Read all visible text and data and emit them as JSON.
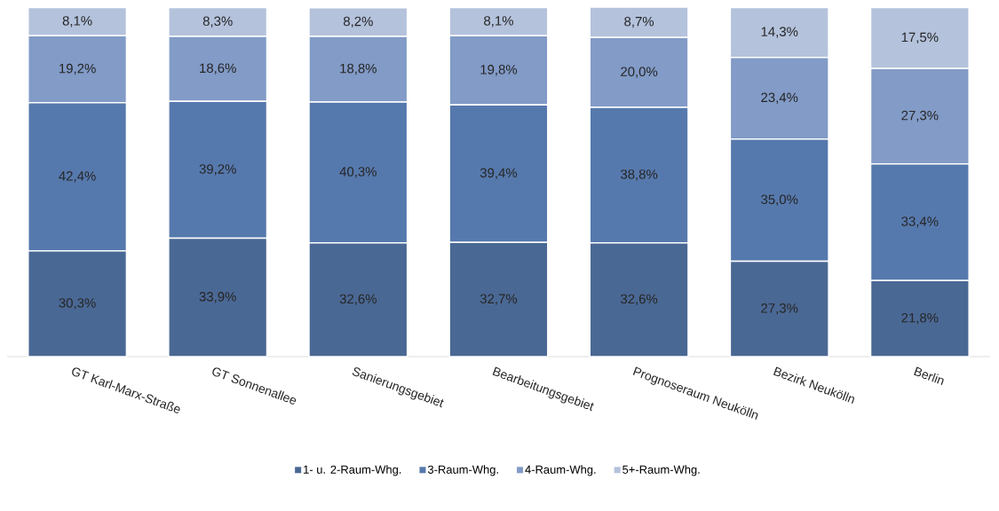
{
  "chart_data": {
    "type": "bar",
    "stacked": true,
    "categories": [
      "GT Karl-Marx-Straße",
      "GT Sonnenallee",
      "Sanierungsgebiet",
      "Bearbeitungsgebiet",
      "Prognoseraum Neukölln",
      "Bezirk Neukölln",
      "Berlin"
    ],
    "tick_labels": "x",
    "legend": "bottom",
    "series": [
      {
        "name": "1- u. 2-Raum-Whg.",
        "color": "#4a6894",
        "values": [
          30.3,
          33.9,
          32.6,
          32.7,
          32.6,
          27.3,
          21.8
        ],
        "value_labels": [
          "30,3%",
          "33,9%",
          "32,6%",
          "32,7%",
          "32,6%",
          "27,3%",
          "21,8%"
        ]
      },
      {
        "name": "3-Raum-Whg.",
        "color": "#5679ad",
        "values": [
          42.4,
          39.2,
          40.3,
          39.4,
          38.8,
          35.0,
          33.4
        ],
        "value_labels": [
          "42,4%",
          "39,2%",
          "40,3%",
          "39,4%",
          "38,8%",
          "35,0%",
          "33,4%"
        ]
      },
      {
        "name": "4-Raum-Whg.",
        "color": "#829bc7",
        "values": [
          19.2,
          18.6,
          18.8,
          19.8,
          20.0,
          23.4,
          27.3
        ],
        "value_labels": [
          "19,2%",
          "18,6%",
          "18,8%",
          "19,8%",
          "20,0%",
          "23,4%",
          "27,3%"
        ]
      },
      {
        "name": "5+-Raum-Whg.",
        "color": "#b4c2dc",
        "values": [
          8.1,
          8.3,
          8.2,
          8.1,
          8.7,
          14.3,
          17.5
        ],
        "value_labels": [
          "8,1%",
          "8,3%",
          "8,2%",
          "8,1%",
          "8,7%",
          "14,3%",
          "17,5%"
        ]
      }
    ]
  }
}
